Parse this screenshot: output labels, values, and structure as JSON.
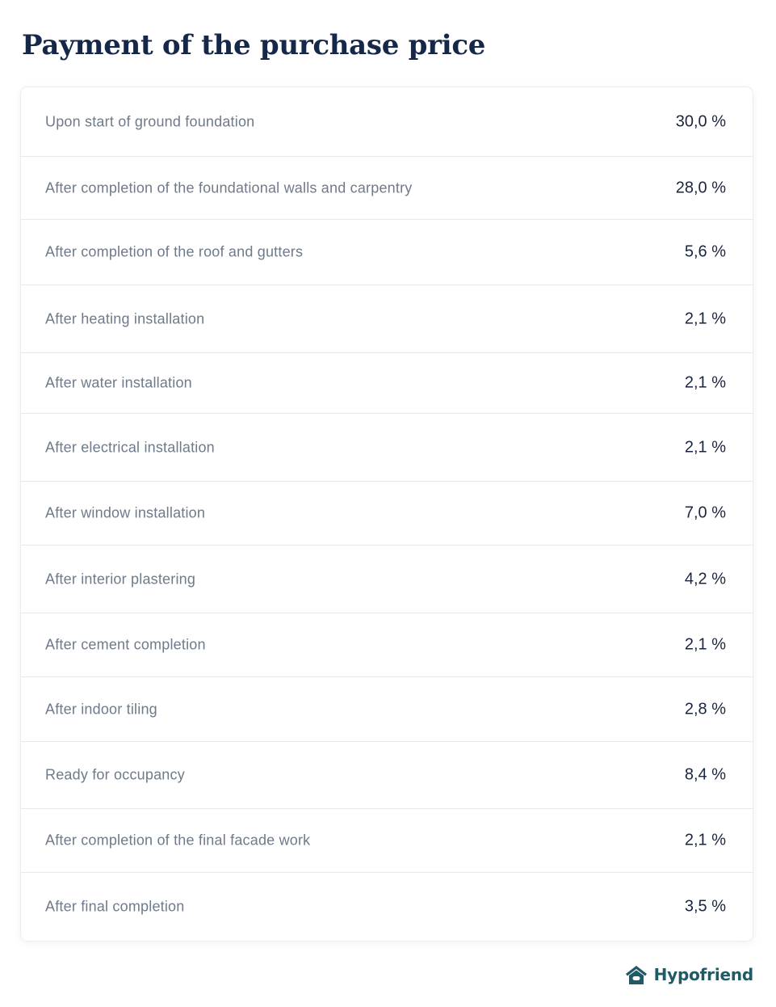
{
  "title": "Payment of the purchase price",
  "table": {
    "rows": [
      {
        "label": "Upon start of ground foundation",
        "value": "30,0 %"
      },
      {
        "label": "After completion of the foundational walls and carpentry",
        "value": "28,0 %"
      },
      {
        "label": "After completion of the roof and gutters",
        "value": "5,6 %"
      },
      {
        "label": "After heating installation",
        "value": "2,1 %"
      },
      {
        "label": "After water installation",
        "value": "2,1 %"
      },
      {
        "label": "After electrical installation",
        "value": "2,1 %"
      },
      {
        "label": "After window installation",
        "value": "7,0 %"
      },
      {
        "label": "After interior plastering",
        "value": "4,2 %"
      },
      {
        "label": "After cement completion",
        "value": "2,1 %"
      },
      {
        "label": "After indoor tiling",
        "value": "2,8 %"
      },
      {
        "label": "Ready for occupancy",
        "value": "8,4 %"
      },
      {
        "label": "After completion of the final facade work",
        "value": "2,1 %"
      },
      {
        "label": "After final completion",
        "value": "3,5 %"
      }
    ]
  },
  "brand": {
    "name": "Hypofriend",
    "icon": "house-logo-icon",
    "color": "#1f5a66"
  },
  "colors": {
    "title": "#16284a",
    "label": "#6f7a8a",
    "value": "#1a2540",
    "divider": "#e6e9ed"
  }
}
